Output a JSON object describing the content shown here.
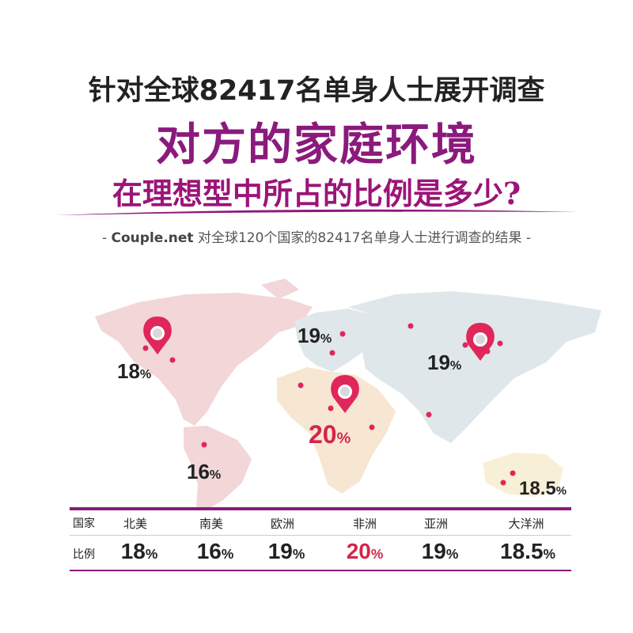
{
  "header": {
    "line1": "针对全球82417名单身人士展开调查",
    "line2": "对方的家庭环境",
    "line3": "在理想型中所占的比例是多少?"
  },
  "source": {
    "prefix": "- ",
    "brand": "Couple.net",
    "text": " 对全球120个国家的82417名单身人士进行调查的结果 -"
  },
  "colors": {
    "accent": "#8a1a7c",
    "highlight": "#d4264a",
    "pin": "#e0265a"
  },
  "chart_data": {
    "type": "table",
    "row_labels": [
      "国家",
      "比例"
    ],
    "unit": "%",
    "categories": [
      "北美",
      "南美",
      "欧洲",
      "非洲",
      "亚洲",
      "大洋洲"
    ],
    "values": [
      18,
      16,
      19,
      20,
      19,
      18.5
    ],
    "highlight_category": "非洲"
  },
  "map_labels": [
    {
      "region": "北美",
      "value": "18",
      "unit": "%"
    },
    {
      "region": "南美",
      "value": "16",
      "unit": "%"
    },
    {
      "region": "欧洲",
      "value": "19",
      "unit": "%"
    },
    {
      "region": "非洲",
      "value": "20",
      "unit": "%"
    },
    {
      "region": "亚洲",
      "value": "19",
      "unit": "%"
    },
    {
      "region": "大洋洲",
      "value": "18.5",
      "unit": "%"
    }
  ],
  "table": {
    "row_header_country": "国家",
    "row_header_ratio": "比例",
    "cells": [
      {
        "country": "北美",
        "value": "18",
        "unit": "%"
      },
      {
        "country": "南美",
        "value": "16",
        "unit": "%"
      },
      {
        "country": "欧洲",
        "value": "19",
        "unit": "%"
      },
      {
        "country": "非洲",
        "value": "20",
        "unit": "%"
      },
      {
        "country": "亚洲",
        "value": "19",
        "unit": "%"
      },
      {
        "country": "大洋洲",
        "value": "18.5",
        "unit": "%"
      }
    ]
  }
}
